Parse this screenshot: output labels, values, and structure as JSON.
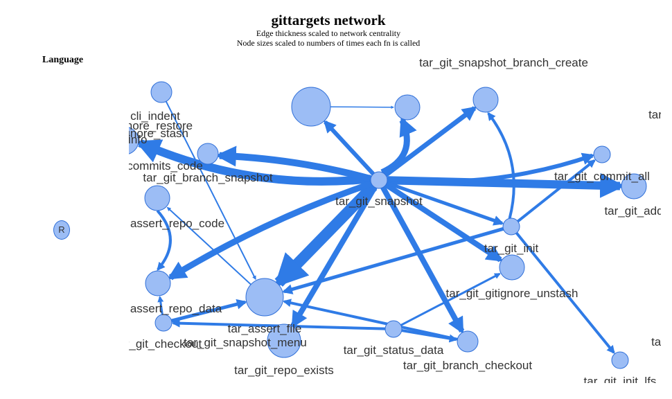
{
  "header": {
    "title": "gittargets network",
    "subtitle_line1": "Edge thickness scaled to network centrality",
    "subtitle_line2": "Node sizes scaled to numbers of times each fn is called"
  },
  "legend": {
    "title": "Language",
    "items": [
      {
        "label": "R",
        "color": "#9cbdf5"
      }
    ]
  },
  "colors": {
    "edge": "#2f7be6",
    "node_fill": "#9cbdf5",
    "node_stroke": "#2f6fd8",
    "label": "#333333"
  },
  "nodes": [
    {
      "id": "cli_indent",
      "label": "cli_indent"
    },
    {
      "id": "cli_info",
      "label": "cli_info"
    },
    {
      "id": "tar_git_gitignore_stash",
      "label": "tar_git_gitignore_stash"
    },
    {
      "id": "tar_git_gitignore_restore",
      "label": "tar_git_gitignore_restore"
    },
    {
      "id": "tar_git_snapshot_branch_create",
      "label": "tar_git_snapshot_branch_create"
    },
    {
      "id": "tar_edge_top_right",
      "label": "tar"
    },
    {
      "id": "commits_code",
      "label": "commits_code"
    },
    {
      "id": "tar_git_branch_snapshot",
      "label": "tar_git_branch_snapshot"
    },
    {
      "id": "tar_git_snapshot",
      "label": "tar_git_snapshot"
    },
    {
      "id": "tar_git_commit_all",
      "label": "tar_git_commit_all"
    },
    {
      "id": "tar_git_add",
      "label": "tar_git_add"
    },
    {
      "id": "assert_repo_code",
      "label": "assert_repo_code"
    },
    {
      "id": "tar_git_init",
      "label": "tar_git_init"
    },
    {
      "id": "tar_git_gitignore_unstash",
      "label": "tar_git_gitignore_unstash"
    },
    {
      "id": "assert_repo_data",
      "label": "assert_repo_data"
    },
    {
      "id": "tar_assert_file",
      "label": "tar_assert_file"
    },
    {
      "id": "tar_git_checkout",
      "label": "r_git_checkout"
    },
    {
      "id": "tar_git_snapshot_menu",
      "label": "tar_git_snapshot_menu"
    },
    {
      "id": "tar_git_status_data",
      "label": "tar_git_status_data"
    },
    {
      "id": "tar_git_branch_checkout",
      "label": "tar_git_branch_checkout"
    },
    {
      "id": "tar_edge_bottom_right",
      "label": "tar"
    },
    {
      "id": "tar_git_repo_exists",
      "label": "tar_git_repo_exists"
    },
    {
      "id": "tar_git_init_lfs",
      "label": "tar_git_init_lfs"
    }
  ]
}
